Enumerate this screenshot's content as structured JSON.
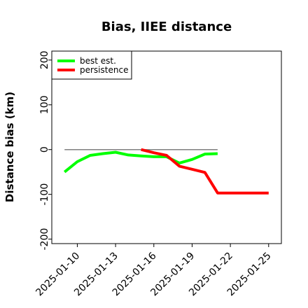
{
  "chart_data": {
    "type": "line",
    "title": "Bias, IIEE distance",
    "xlabel": "",
    "ylabel": "Distance bias (km)",
    "xlim": [
      "2025-01-08",
      "2025-01-26"
    ],
    "ylim": [
      -210,
      220
    ],
    "yticks": [
      -200,
      -100,
      0,
      100,
      200
    ],
    "ytick_labels": [
      "-200",
      "-100",
      "0",
      "100",
      "200"
    ],
    "xticks": [
      "2025-01-10",
      "2025-01-13",
      "2025-01-16",
      "2025-01-19",
      "2025-01-22",
      "2025-01-25"
    ],
    "xtick_labels": [
      "2025-01-10",
      "2025-01-13",
      "2025-01-16",
      "2025-01-19",
      "2025-01-22",
      "2025-01-25"
    ],
    "grid": false,
    "legend_position": "top-left",
    "reference_line": {
      "y": 0,
      "x_start": "2025-01-09",
      "x_end": "2025-01-21",
      "color": "#808080"
    },
    "series": [
      {
        "name": "best est.",
        "color": "#00ff00",
        "x": [
          "2025-01-09",
          "2025-01-10",
          "2025-01-11",
          "2025-01-12",
          "2025-01-13",
          "2025-01-14",
          "2025-01-15",
          "2025-01-16",
          "2025-01-17",
          "2025-01-18",
          "2025-01-19",
          "2025-01-20",
          "2025-01-21"
        ],
        "y": [
          -50,
          -27,
          -13,
          -9,
          -6,
          -12,
          -14,
          -16,
          -16,
          -30,
          -22,
          -10,
          -9
        ]
      },
      {
        "name": "persistence",
        "color": "#ff0000",
        "x": [
          "2025-01-15",
          "2025-01-16",
          "2025-01-17",
          "2025-01-18",
          "2025-01-19",
          "2025-01-20",
          "2025-01-21",
          "2025-01-22",
          "2025-01-23",
          "2025-01-24",
          "2025-01-25"
        ],
        "y": [
          0,
          -7,
          -13,
          -37,
          -44,
          -51,
          -97,
          -97,
          -97,
          -97,
          -97
        ]
      }
    ]
  }
}
